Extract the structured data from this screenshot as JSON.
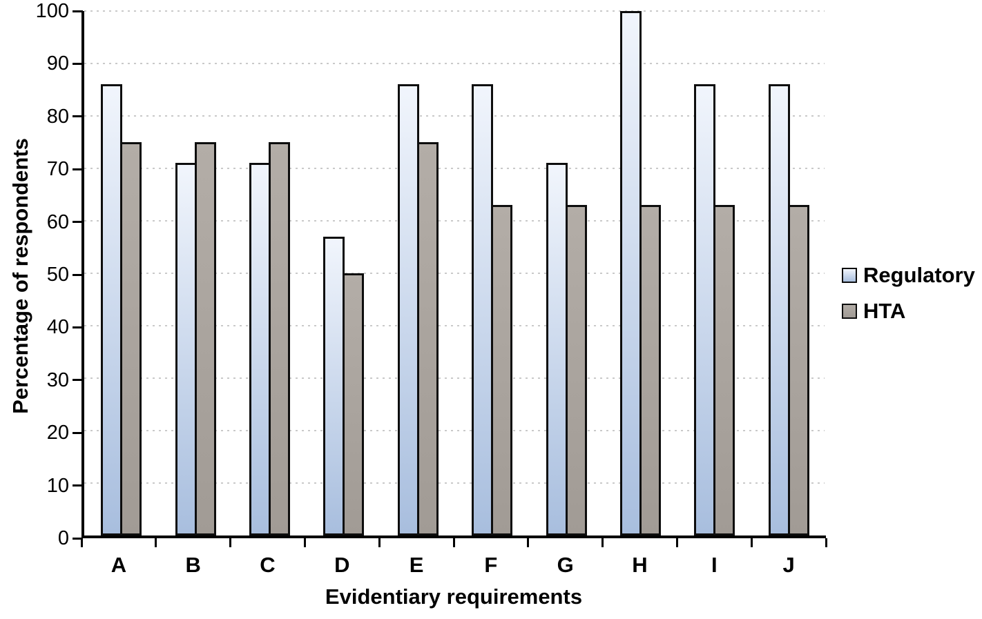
{
  "chart_data": {
    "type": "bar",
    "title": "",
    "xlabel": "Evidentiary requirements",
    "ylabel": "Percentage of respondents",
    "categories": [
      "A",
      "B",
      "C",
      "D",
      "E",
      "F",
      "G",
      "H",
      "I",
      "J"
    ],
    "series": [
      {
        "name": "Regulatory",
        "values": [
          86,
          71,
          71,
          57,
          86,
          86,
          71,
          100,
          86,
          86
        ]
      },
      {
        "name": "HTA",
        "values": [
          75,
          75,
          75,
          50,
          75,
          63,
          63,
          63,
          63,
          63
        ]
      }
    ],
    "ylim": [
      0,
      100
    ],
    "yticks": [
      0,
      10,
      20,
      30,
      40,
      50,
      60,
      70,
      80,
      90,
      100
    ],
    "grid": "horizontal-dotted",
    "legend_position": "right",
    "legend": [
      "Regulatory",
      "HTA"
    ]
  },
  "colors": {
    "regulatory_gradient_top": "#f1f5fc",
    "regulatory_gradient_bottom": "#a8bede",
    "hta_gradient_top": "#b3ada7",
    "hta_gradient_bottom": "#a19b95",
    "bar_border": "#0d0d0d",
    "axis": "#000000",
    "gridline": "#c9c9c9",
    "text": "#000000",
    "background": "#ffffff"
  }
}
